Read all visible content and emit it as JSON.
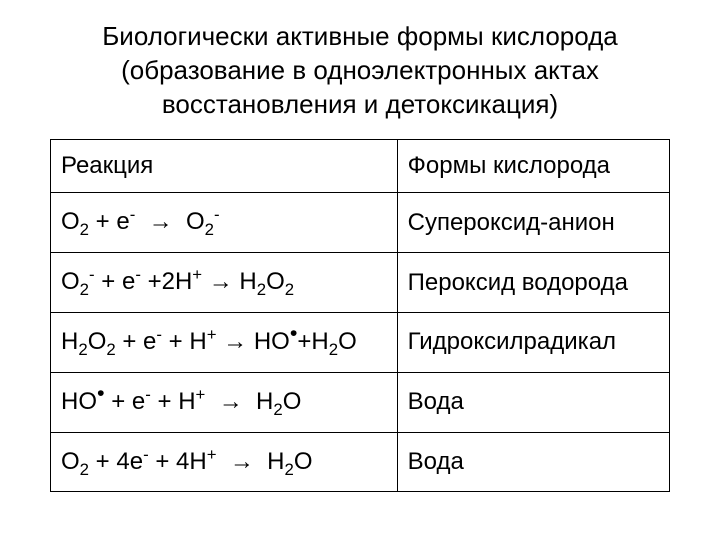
{
  "title": {
    "line1": "Биологически активные формы кислорода",
    "line2": "(образование в одноэлектронных актах",
    "line3": "восстановления и детоксикация)"
  },
  "table": {
    "header": {
      "col1": "Реакция",
      "col2": "Формы кислорода"
    },
    "rows": [
      {
        "forms": "Супероксид-анион"
      },
      {
        "forms": "Пероксид водорода"
      },
      {
        "forms": "Гидроксилрадикал"
      },
      {
        "forms": "Вода"
      },
      {
        "forms": "Вода"
      }
    ]
  },
  "styling": {
    "background_color": "#ffffff",
    "border_color": "#000000",
    "font_family": "Arial",
    "title_fontsize": 26,
    "cell_fontsize": 24,
    "col1_width_pct": 56,
    "col2_width_pct": 44,
    "cell_padding": "12px 10px"
  },
  "reactions": [
    {
      "description": "O2 + e- -> O2-",
      "product": "superoxide anion"
    },
    {
      "description": "O2- + e- + 2H+ -> H2O2",
      "product": "hydrogen peroxide"
    },
    {
      "description": "H2O2 + e- + H+ -> HO. + H2O",
      "product": "hydroxyl radical"
    },
    {
      "description": "HO. + e- + H+ -> H2O",
      "product": "water"
    },
    {
      "description": "O2 + 4e- + 4H+ -> H2O",
      "product": "water"
    }
  ]
}
